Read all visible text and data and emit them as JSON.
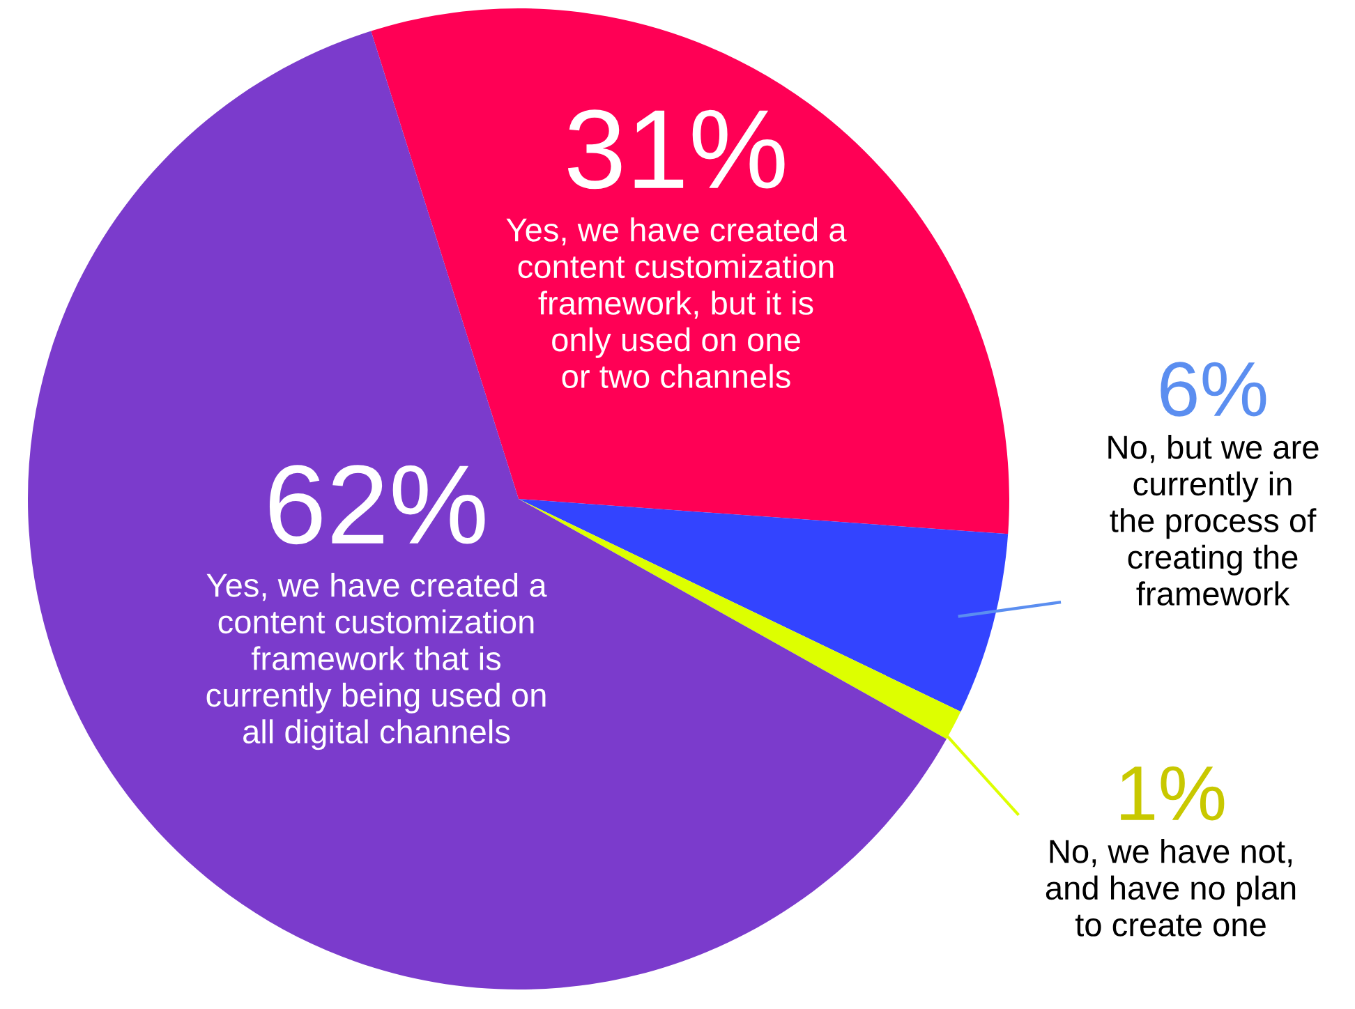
{
  "chart_data": {
    "type": "pie",
    "categories": [
      "Yes, we have created a\ncontent customization\nframework, but it is\nonly used on one\nor two channels",
      "No, but we are\ncurrently in\nthe process of\ncreating the\nframework",
      "No, we have not,\nand have no plan\nto create one",
      "Yes, we have created a\ncontent customization\nframework that is\ncurrently being used on\nall digital channels"
    ],
    "values": [
      31,
      6,
      1,
      62
    ],
    "colors": [
      "#ff0055",
      "#3344ff",
      "#ddff00",
      "#7b3bcc"
    ],
    "value_labels": [
      "31%",
      "6%",
      "1%",
      "62%"
    ]
  }
}
